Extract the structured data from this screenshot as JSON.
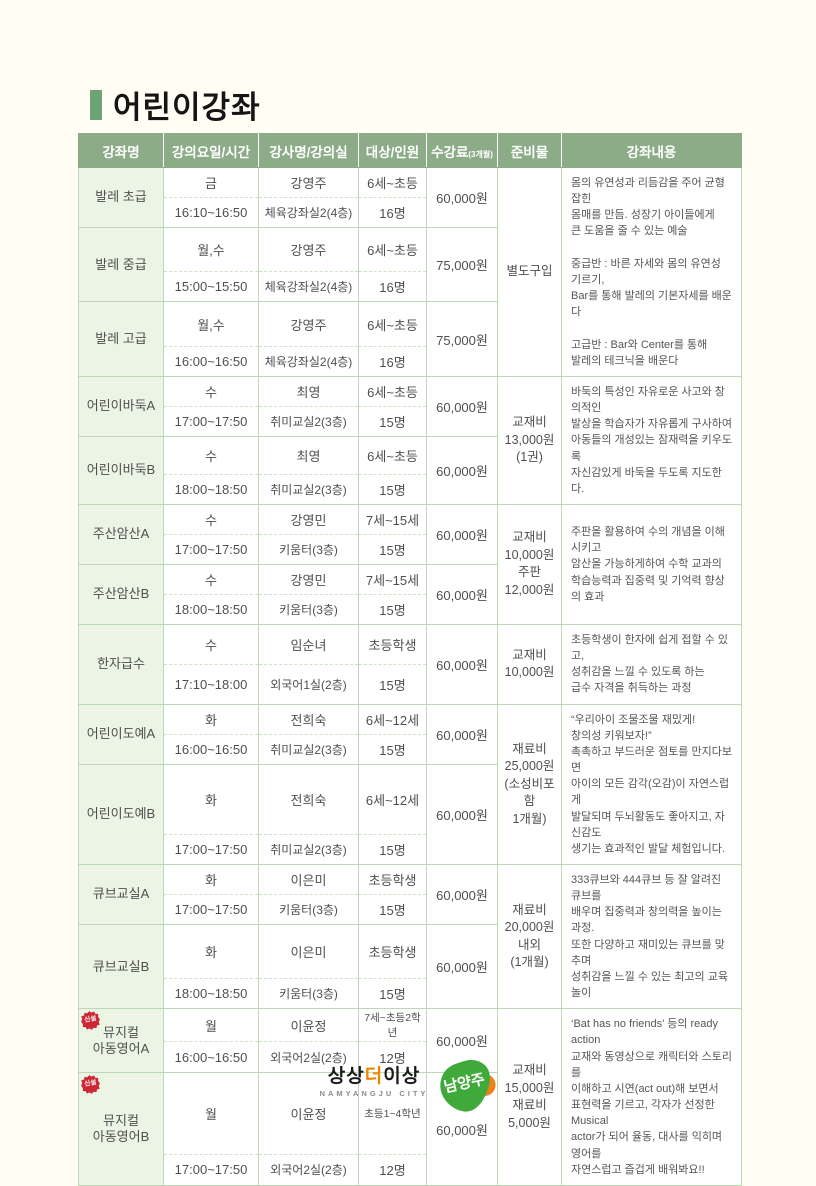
{
  "page": {
    "title": "어린이강좌"
  },
  "table": {
    "headers": [
      "강좌명",
      "강의요일/시간",
      "강사명/강의실",
      "대상/인원",
      "수강료",
      "준비물",
      "강좌내용"
    ],
    "fee_unit_note": "(3개월)",
    "rows": [
      {
        "name": "발레 초급",
        "day": "금",
        "time": "16:10~16:50",
        "instructor": "강영주",
        "room": "체육강좌실2(4층)",
        "target": "6세~초등",
        "capacity": "16명",
        "fee": "60,000원",
        "badge": ""
      },
      {
        "name": "발레 중급",
        "day": "월,수",
        "time": "15:00~15:50",
        "instructor": "강영주",
        "room": "체육강좌실2(4층)",
        "target": "6세~초등",
        "capacity": "16명",
        "fee": "75,000원",
        "badge": ""
      },
      {
        "name": "발레 고급",
        "day": "월,수",
        "time": "16:00~16:50",
        "instructor": "강영주",
        "room": "체육강좌실2(4층)",
        "target": "6세~초등",
        "capacity": "16명",
        "fee": "75,000원",
        "badge": ""
      },
      {
        "name": "어린이바둑A",
        "day": "수",
        "time": "17:00~17:50",
        "instructor": "최영",
        "room": "취미교실2(3층)",
        "target": "6세~초등",
        "capacity": "15명",
        "fee": "60,000원",
        "badge": ""
      },
      {
        "name": "어린이바둑B",
        "day": "수",
        "time": "18:00~18:50",
        "instructor": "최영",
        "room": "취미교실2(3층)",
        "target": "6세~초등",
        "capacity": "15명",
        "fee": "60,000원",
        "badge": ""
      },
      {
        "name": "주산암산A",
        "day": "수",
        "time": "17:00~17:50",
        "instructor": "강영민",
        "room": "키움터(3층)",
        "target": "7세~15세",
        "capacity": "15명",
        "fee": "60,000원",
        "badge": ""
      },
      {
        "name": "주산암산B",
        "day": "수",
        "time": "18:00~18:50",
        "instructor": "강영민",
        "room": "키움터(3층)",
        "target": "7세~15세",
        "capacity": "15명",
        "fee": "60,000원",
        "badge": ""
      },
      {
        "name": "한자급수",
        "day": "수",
        "time": "17:10~18:00",
        "instructor": "임순녀",
        "room": "외국어1실(2층)",
        "target": "초등학생",
        "capacity": "15명",
        "fee": "60,000원",
        "badge": ""
      },
      {
        "name": "어린이도예A",
        "day": "화",
        "time": "16:00~16:50",
        "instructor": "전희숙",
        "room": "취미교실2(3층)",
        "target": "6세~12세",
        "capacity": "15명",
        "fee": "60,000원",
        "badge": ""
      },
      {
        "name": "어린이도예B",
        "day": "화",
        "time": "17:00~17:50",
        "instructor": "전희숙",
        "room": "취미교실2(3층)",
        "target": "6세~12세",
        "capacity": "15명",
        "fee": "60,000원",
        "badge": ""
      },
      {
        "name": "큐브교실A",
        "day": "화",
        "time": "17:00~17:50",
        "instructor": "이은미",
        "room": "키움터(3층)",
        "target": "초등학생",
        "capacity": "15명",
        "fee": "60,000원",
        "badge": ""
      },
      {
        "name": "큐브교실B",
        "day": "화",
        "time": "18:00~18:50",
        "instructor": "이은미",
        "room": "키움터(3층)",
        "target": "초등학생",
        "capacity": "15명",
        "fee": "60,000원",
        "badge": ""
      },
      {
        "name": "뮤지컬\n아동영어A",
        "day": "월",
        "time": "16:00~16:50",
        "instructor": "이윤정",
        "room": "외국어2실(2층)",
        "target": "7세~초등2학년",
        "capacity": "12명",
        "fee": "60,000원",
        "badge": "신설"
      },
      {
        "name": "뮤지컬\n아동영어B",
        "day": "월",
        "time": "17:00~17:50",
        "instructor": "이윤정",
        "room": "외국어2실(2층)",
        "target": "초등1~4학년",
        "capacity": "12명",
        "fee": "60,000원",
        "badge": "신설"
      }
    ],
    "groups": [
      {
        "start": 0,
        "span": 3,
        "materials": "별도구입",
        "content": "몸의 유연성과 리듬감을 주어 균형잡힌\n몸매를 만듬. 성장기 아이들에게\n큰 도움을 줄 수 있는 예술\n\n중급반 : 바른 자세와 몸의 유연성 기르기,\nBar를 통해 발레의 기본자세를 배운다\n\n고급반 : Bar와 Center를 통해\n발레의 테크닉을 배운다"
      },
      {
        "start": 3,
        "span": 2,
        "materials": "교재비\n13,000원\n(1권)",
        "content": "바둑의 특성인 자유로운 사고와 창의적인\n발상을 학습자가 자유롭게 구사하여\n아동들의 개성있는 잠재력을 키우도록\n자신감있게 바둑을 두도록 지도한다."
      },
      {
        "start": 5,
        "span": 2,
        "materials": "교재비\n10,000원\n주판\n12,000원",
        "content": "주판을 활용하여 수의 개념을 이해시키고\n암산을 가능하게하여 수학 교과의\n학습능력과 집중력 및 기억력 향상의 효과"
      },
      {
        "start": 7,
        "span": 1,
        "materials": "교재비\n10,000원",
        "content": "초등학생이 한자에 쉽게 접할 수 있고,\n성취감을 느낄 수 있도록 하는\n급수 자격을 취득하는 과정"
      },
      {
        "start": 8,
        "span": 2,
        "materials": "재료비\n25,000원\n(소성비포함\n1개월)",
        "content": "“우리아이 조물조물 재밌게!\n창의성 키워보자!”\n촉촉하고 부드러운 점토를 만지다보면\n아이의 모든 감각(오감)이 자연스럽게\n발달되며 두뇌활동도 좋아지고, 자신감도\n생기는 효과적인 발달 체험입니다."
      },
      {
        "start": 10,
        "span": 2,
        "materials": "재료비\n20,000원\n내외\n(1개월)",
        "content": "333큐브와 444큐브 등 잘 알려진 큐브를\n배우며 집중력과 창의력을 높이는 과정.\n또한 다양하고 재미있는 큐브를 맞추며\n성취감을 느낄 수 있는 최고의 교육놀이"
      },
      {
        "start": 12,
        "span": 2,
        "materials": "교재비\n15,000원\n재료비\n5,000원",
        "content": "‘Bat has no friends’ 등의 ready action\n교재와 동영상으로 캐릭터와 스토리를\n이해하고 시연(act out)해 보면서\n표현력을 기르고, 각자가 선정한 Musical\nactor가 되어 율동, 대사를 익히며 영어를\n자연스럽고 즐겁게 배워봐요!!"
      }
    ]
  },
  "footer": {
    "brand_part1": "상상",
    "brand_part2": "더",
    "brand_part3": "이상",
    "subtitle": "NAMYANGJU  CITY",
    "mark_text": "남양주"
  },
  "colors": {
    "header_green": "#8CAC88",
    "name_col_green": "#EBF4E5",
    "border_green": "#BDD8B4",
    "title_bar_green": "#6EA376",
    "badge_red": "#CE2734",
    "logo_green": "#3FAA39",
    "logo_orange": "#F0821E"
  }
}
